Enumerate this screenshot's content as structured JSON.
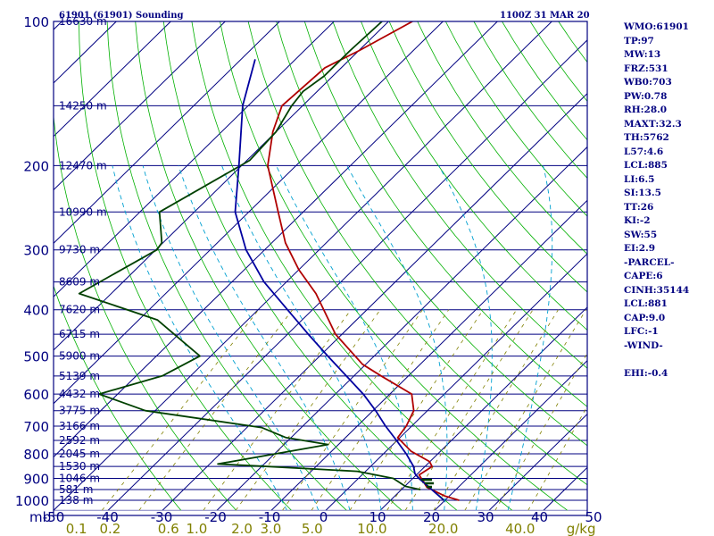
{
  "header": {
    "station": "61901 (61901) Sounding",
    "time": "1100Z 31 MAR 20"
  },
  "colors": {
    "frame": "#000080",
    "isobar": "#000080",
    "isotherm": "#000080",
    "dry_adiabat": "#00b000",
    "moist_adiabat": "#00a0d0",
    "mixing_ratio": "#808000",
    "temperature": "#b00000",
    "dewpoint": "#004000",
    "parcel": "#0000a0"
  },
  "index_list": [
    "WMO:61901",
    "TP:97",
    "MW:13",
    "FRZ:531",
    "WB0:703",
    "PW:0.78",
    "RH:28.0",
    "MAXT:32.3",
    "TH:5762",
    "L57:4.6",
    "LCL:885",
    "LI:6.5",
    "SI:13.5",
    "TT:26",
    "KI:-2",
    "SW:55",
    "EI:2.9",
    "-PARCEL-",
    "CAPE:6",
    "CINH:35144",
    "LCL:881",
    "CAP:9.0",
    "LFC:-1",
    "-WIND-",
    "",
    "EHI:-0.4"
  ],
  "chart_data": {
    "type": "line",
    "title": "",
    "diagram": "skew-T log-P",
    "y_scale": "log",
    "ylim": [
      1050,
      100
    ],
    "xlim": [
      -50,
      50
    ],
    "pressure_unit": "mb",
    "pressure_ticks": [
      100,
      200,
      300,
      400,
      500,
      600,
      700,
      800,
      900,
      1000
    ],
    "temperature_ticks": [
      "-50",
      "-40",
      "-30",
      "-20",
      "-10",
      "0",
      "10",
      "20",
      "30",
      "40",
      "50"
    ],
    "mixing_ratio_unit": "g/kg",
    "mixing_ratio_ticks": [
      {
        "label": "0.1",
        "t": -45.8
      },
      {
        "label": "0.2",
        "t": -39.6
      },
      {
        "label": "0.6",
        "t": -28.9
      },
      {
        "label": "1.0",
        "t": -23.7
      },
      {
        "label": "2.0",
        "t": -15.4
      },
      {
        "label": "3.0",
        "t": -10.1
      },
      {
        "label": "5.0",
        "t": -2.5
      },
      {
        "label": "10.0",
        "t": 8.5
      },
      {
        "label": "20.0",
        "t": 21.6
      },
      {
        "label": "40.0",
        "t": 35.7
      },
      {
        "label": "g/kg",
        "t": 46.9
      }
    ],
    "height_labels": [
      {
        "p": 100,
        "label": "16630 m"
      },
      {
        "p": 150,
        "label": "14250 m"
      },
      {
        "p": 200,
        "label": "12470 m"
      },
      {
        "p": 250,
        "label": "10990 m"
      },
      {
        "p": 300,
        "label": "9730 m"
      },
      {
        "p": 350,
        "label": "8609 m"
      },
      {
        "p": 400,
        "label": "7620 m"
      },
      {
        "p": 450,
        "label": "6715 m"
      },
      {
        "p": 500,
        "label": "5900 m"
      },
      {
        "p": 550,
        "label": "5139 m"
      },
      {
        "p": 600,
        "label": "4432 m"
      },
      {
        "p": 650,
        "label": "3775 m"
      },
      {
        "p": 700,
        "label": "3166 m"
      },
      {
        "p": 750,
        "label": "2592 m"
      },
      {
        "p": 800,
        "label": "2045 m"
      },
      {
        "p": 850,
        "label": "1530 m"
      },
      {
        "p": 900,
        "label": "1046 m"
      },
      {
        "p": 950,
        "label": "581 m"
      },
      {
        "p": 1000,
        "label": "138 m"
      }
    ],
    "series": [
      {
        "key": "temperature",
        "points": [
          [
            100,
            -75.6
          ],
          [
            115,
            -79.9
          ],
          [
            125,
            -83.0
          ],
          [
            150,
            -83.8
          ],
          [
            170,
            -80.6
          ],
          [
            200,
            -75.2
          ],
          [
            250,
            -64.6
          ],
          [
            290,
            -57.5
          ],
          [
            330,
            -50.0
          ],
          [
            370,
            -42.4
          ],
          [
            450,
            -31.2
          ],
          [
            520,
            -20.6
          ],
          [
            550,
            -15.0
          ],
          [
            600,
            -6.0
          ],
          [
            650,
            -2.5
          ],
          [
            700,
            -1.0
          ],
          [
            740,
            -0.4
          ],
          [
            790,
            4.6
          ],
          [
            830,
            9.9
          ],
          [
            850,
            11.3
          ],
          [
            885,
            10.5
          ],
          [
            940,
            14.3
          ],
          [
            980,
            19.2
          ],
          [
            1000,
            22.6
          ]
        ]
      },
      {
        "key": "dewpoint",
        "points": [
          [
            100,
            -81.2
          ],
          [
            115,
            -81.6
          ],
          [
            130,
            -81.6
          ],
          [
            140,
            -82.6
          ],
          [
            150,
            -82.0
          ],
          [
            170,
            -80.0
          ],
          [
            195,
            -79.5
          ],
          [
            250,
            -86.4
          ],
          [
            290,
            -80.2
          ],
          [
            300,
            -79.8
          ],
          [
            370,
            -85.9
          ],
          [
            420,
            -66.6
          ],
          [
            500,
            -52.0
          ],
          [
            550,
            -55.2
          ],
          [
            600,
            -63.4
          ],
          [
            650,
            -51.8
          ],
          [
            705,
            -27.3
          ],
          [
            740,
            -20.9
          ],
          [
            765,
            -11.9
          ],
          [
            840,
            -28.5
          ],
          [
            850,
            -18.9
          ],
          [
            870,
            -1.5
          ],
          [
            900,
            6.4
          ],
          [
            935,
            10.1
          ],
          [
            950,
            13.5
          ]
        ]
      },
      {
        "key": "parcel",
        "points": [
          [
            120,
            -97.4
          ],
          [
            150,
            -91.0
          ],
          [
            200,
            -80.5
          ],
          [
            250,
            -72.5
          ],
          [
            300,
            -63.4
          ],
          [
            350,
            -54.1
          ],
          [
            400,
            -44.6
          ],
          [
            450,
            -36.2
          ],
          [
            500,
            -28.5
          ],
          [
            550,
            -21.4
          ],
          [
            600,
            -14.9
          ],
          [
            650,
            -9.5
          ],
          [
            700,
            -4.8
          ],
          [
            750,
            -0.1
          ],
          [
            800,
            4.2
          ],
          [
            850,
            7.9
          ],
          [
            880,
            9.5
          ],
          [
            900,
            11.1
          ],
          [
            1000,
            19.8
          ]
        ]
      }
    ]
  }
}
